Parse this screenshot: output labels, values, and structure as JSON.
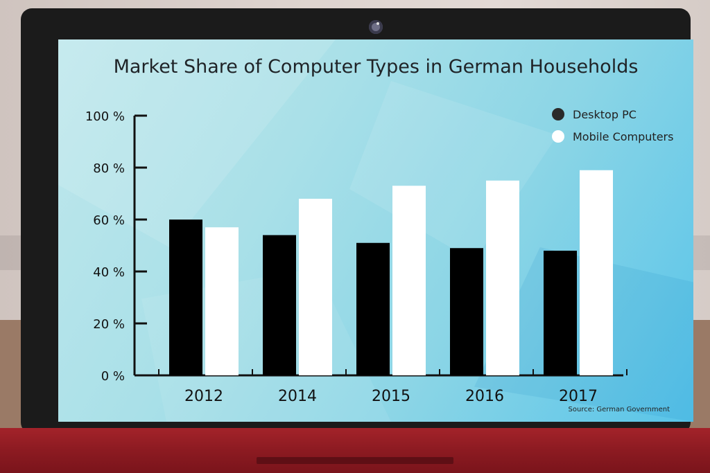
{
  "chart_data": {
    "type": "bar",
    "title": "Market Share of Computer Types in German Households",
    "categories": [
      "2012",
      "2014",
      "2015",
      "2016",
      "2017"
    ],
    "series": [
      {
        "name": "Desktop PC",
        "values": [
          60,
          54,
          51,
          49,
          48
        ],
        "color": "#000000"
      },
      {
        "name": "Mobile Computers",
        "values": [
          57,
          68,
          73,
          75,
          79
        ],
        "color": "#ffffff"
      }
    ],
    "yticks": [
      "0 %",
      "20 %",
      "40 %",
      "60 %",
      "80 %",
      "100 %"
    ],
    "ylim": [
      0,
      100
    ],
    "legend_position": "top-right",
    "grid": false
  },
  "source": "Source: German Government",
  "colors": {
    "screen_accent": "#58c4e9",
    "bezel": "#1b1b1b",
    "base": "#a3232a"
  }
}
